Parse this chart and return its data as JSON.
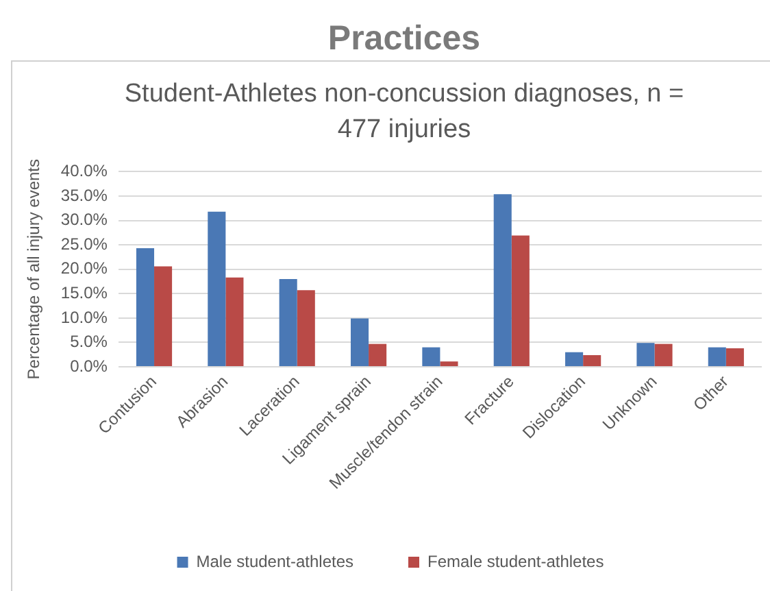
{
  "chart_data": {
    "type": "bar",
    "title": "Practices",
    "subtitle": "Student-Athletes non-concussion diagnoses, n = 477 injuries",
    "ylabel": "Percentage of all injury events",
    "categories": [
      "Contusion",
      "Abrasion",
      "Laceration",
      "Ligament sprain",
      "Muscle/tendon strain",
      "Fracture",
      "Dislocation",
      "Unknown",
      "Other"
    ],
    "series": [
      {
        "name": "Male student-athletes",
        "color": "#4a78b5",
        "values": [
          24.3,
          31.8,
          18.0,
          9.9,
          4.0,
          35.4,
          3.0,
          4.9,
          4.0
        ]
      },
      {
        "name": "Female student-athletes",
        "color": "#b94a47",
        "values": [
          20.6,
          18.3,
          15.7,
          4.7,
          1.1,
          26.9,
          2.4,
          4.7,
          3.8
        ]
      }
    ],
    "ylim": [
      0,
      40
    ],
    "yticks": [
      {
        "value": 0,
        "label": "0.0%"
      },
      {
        "value": 5,
        "label": "5.0%"
      },
      {
        "value": 10,
        "label": "10.0%"
      },
      {
        "value": 15,
        "label": "15.0%"
      },
      {
        "value": 20,
        "label": "20.0%"
      },
      {
        "value": 25,
        "label": "25.0%"
      },
      {
        "value": 30,
        "label": "30.0%"
      },
      {
        "value": 35,
        "label": "35.0%"
      },
      {
        "value": 40,
        "label": "40.0%"
      }
    ],
    "grid": "y",
    "legend": "bottom"
  }
}
